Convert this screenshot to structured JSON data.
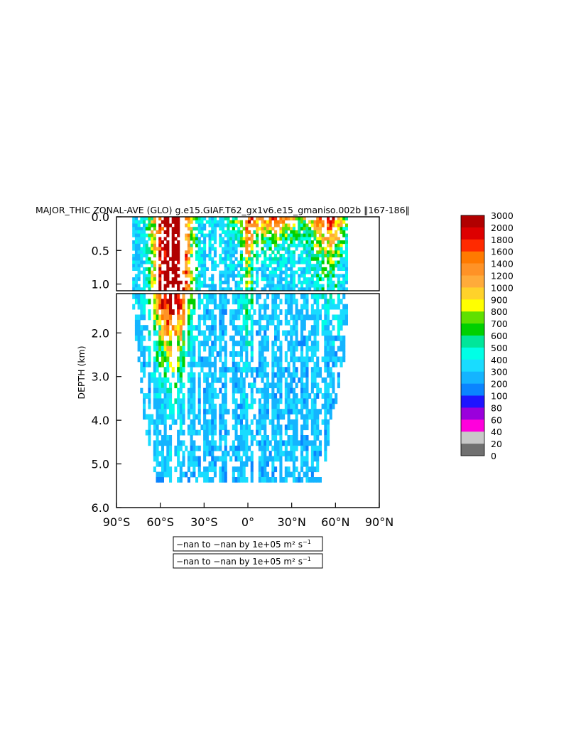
{
  "chart_data": {
    "type": "heatmap",
    "title": "MAJOR_THIC ZONAL-AVE (GLO) g.e15.GIAF.T62_gx1v6.e15_gmaniso.002b ‖167-186‖",
    "ylabel": "DEPTH (km)",
    "x_ticks": [
      "90°S",
      "60°S",
      "30°S",
      "0°",
      "30°N",
      "60°N",
      "90°N"
    ],
    "x_range": [
      -90,
      90
    ],
    "upper_panel": {
      "y_range": [
        0.0,
        1.1
      ],
      "y_ticks": [
        "0.0",
        "0.5",
        "1.0"
      ]
    },
    "lower_panel": {
      "y_range": [
        1.1,
        6.0
      ],
      "y_ticks": [
        "2.0",
        "3.0",
        "4.0",
        "5.0",
        "6.0"
      ]
    },
    "colorbar": {
      "levels": [
        "3000",
        "2000",
        "1800",
        "1600",
        "1400",
        "1200",
        "1000",
        "900",
        "800",
        "700",
        "600",
        "500",
        "400",
        "300",
        "200",
        "100",
        "80",
        "60",
        "40",
        "20",
        "0"
      ],
      "colors": [
        "#b10000",
        "#dd0000",
        "#ff2a00",
        "#ff7a00",
        "#ff9226",
        "#ffab3a",
        "#ffd22a",
        "#ffff00",
        "#5fe000",
        "#00d000",
        "#00e69a",
        "#00ffe6",
        "#19dcff",
        "#14b4ff",
        "#0a84ff",
        "#1e14ff",
        "#9a00dc",
        "#ff00dc",
        "#c8c8c8",
        "#707070"
      ]
    },
    "legend_labels": [
      {
        "text": "−nan to −nan by 1e+05 m² s",
        "sup": "−1"
      },
      {
        "text": "−nan to −nan by 1e+05 m² s",
        "sup": "−1"
      }
    ]
  }
}
